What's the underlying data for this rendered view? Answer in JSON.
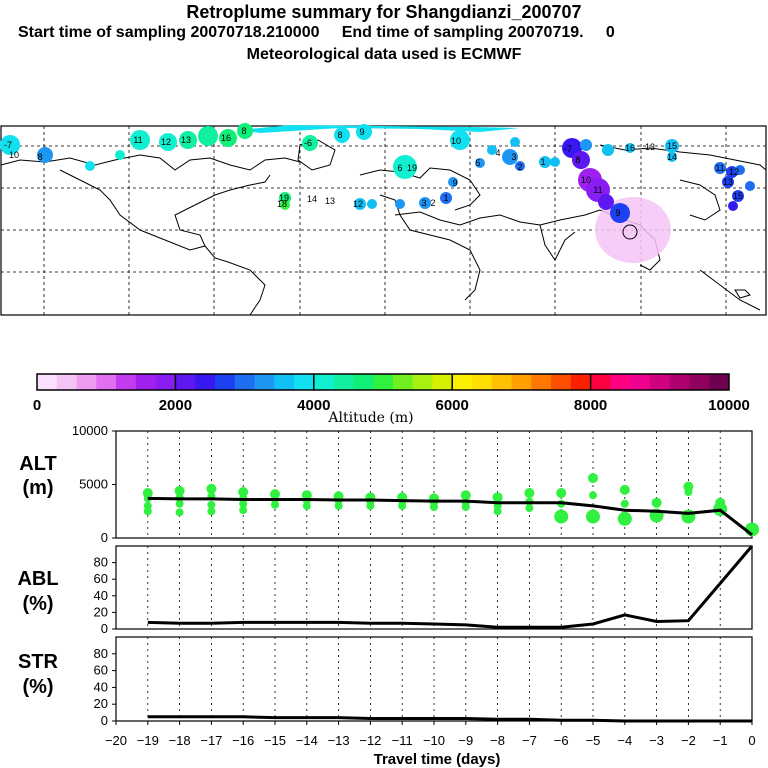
{
  "header": {
    "title": "Retroplume summary for Shangdianzi_200707",
    "subtitle": "Start time of sampling 20070718.210000     End time of sampling 20070719.     0",
    "met_note": "Meteorological data used is ECMWF"
  },
  "colorbar": {
    "label": "Altitude (m)",
    "ticks": [
      "0",
      "2000",
      "4000",
      "6000",
      "8000",
      "10000"
    ],
    "colors": [
      "#fbe0fb",
      "#f5c4f5",
      "#ee9cef",
      "#e070f0",
      "#c43cf0",
      "#a020f0",
      "#8a1ef2",
      "#5f18f2",
      "#3818f0",
      "#1e40f2",
      "#1e6ef2",
      "#1e96f2",
      "#10c0f4",
      "#10e0f0",
      "#10f0d0",
      "#10f0a0",
      "#10f078",
      "#30f040",
      "#70f020",
      "#a8f010",
      "#d8f000",
      "#f8f000",
      "#ffe000",
      "#ffc000",
      "#ffa000",
      "#ff7800",
      "#ff5000",
      "#ff2000",
      "#ff0040",
      "#ff0080",
      "#f00090",
      "#d00080",
      "#b00070",
      "#900060",
      "#700050"
    ]
  },
  "map": {
    "day_labels": [
      "-7",
      "8",
      "10",
      "11",
      "12",
      "13",
      "16",
      "8",
      "-6",
      "8",
      "9",
      "10",
      "6",
      "19",
      "19",
      "18",
      "14",
      "13",
      "12",
      "3",
      "2",
      "1",
      "9",
      "5",
      "4",
      "3",
      "2",
      "1",
      "-7",
      "8",
      "10",
      "11",
      "9",
      "16",
      "13",
      "15",
      "14",
      "11",
      "12",
      "13",
      "15"
    ]
  },
  "chart_data": [
    {
      "type": "scatter-line",
      "panel": "ALT",
      "ylabel": "ALT\n(m)",
      "ylim": [
        0,
        10000
      ],
      "yticks": [
        0,
        5000,
        10000
      ],
      "x": [
        -19,
        -18,
        -17,
        -16,
        -15,
        -14,
        -13,
        -12,
        -11,
        -10,
        -9,
        -8,
        -7,
        -6,
        -5,
        -4,
        -3,
        -2,
        -1,
        0
      ],
      "line": [
        3700,
        3650,
        3650,
        3600,
        3600,
        3600,
        3550,
        3550,
        3500,
        3450,
        3450,
        3300,
        3300,
        3300,
        3000,
        2600,
        2500,
        2300,
        2600,
        300
      ],
      "clusters": [
        [
          4200,
          3700,
          3000,
          2500
        ],
        [
          4400,
          3800,
          3200,
          2400
        ],
        [
          4600,
          3900,
          3100,
          2500
        ],
        [
          4300,
          3700,
          3200,
          2600
        ],
        [
          4100,
          3600,
          3100
        ],
        [
          4000,
          3500,
          3000
        ],
        [
          3900,
          3500,
          3000
        ],
        [
          3800,
          3400,
          3000
        ],
        [
          3800,
          3400,
          3000
        ],
        [
          3700,
          3300,
          2900
        ],
        [
          4000,
          3300,
          2900
        ],
        [
          3800,
          3000,
          2500
        ],
        [
          4200,
          3400,
          2800
        ],
        [
          4200,
          3200,
          2000
        ],
        [
          5600,
          4000,
          2000
        ],
        [
          4500,
          3200,
          1800
        ],
        [
          3300,
          2100
        ],
        [
          4800,
          4300,
          2000
        ],
        [
          3300,
          2700
        ],
        [
          800
        ]
      ]
    },
    {
      "type": "line",
      "panel": "ABL",
      "ylabel": "ABL\n(%)",
      "ylim": [
        0,
        100
      ],
      "yticks": [
        0,
        20,
        40,
        60,
        80
      ],
      "x": [
        -19,
        -18,
        -17,
        -16,
        -15,
        -14,
        -13,
        -12,
        -11,
        -10,
        -9,
        -8,
        -7,
        -6,
        -5,
        -4,
        -3,
        -2,
        -1,
        0
      ],
      "values": [
        8,
        7,
        7,
        8,
        8,
        8,
        8,
        7,
        7,
        6,
        5,
        2,
        2,
        2,
        6,
        17,
        9,
        10,
        55,
        100
      ]
    },
    {
      "type": "line",
      "panel": "STR",
      "ylabel": "STR\n(%)",
      "ylim": [
        0,
        100
      ],
      "yticks": [
        0,
        20,
        40,
        60,
        80
      ],
      "x": [
        -19,
        -18,
        -17,
        -16,
        -15,
        -14,
        -13,
        -12,
        -11,
        -10,
        -9,
        -8,
        -7,
        -6,
        -5,
        -4,
        -3,
        -2,
        -1,
        0
      ],
      "values": [
        5,
        5,
        5,
        5,
        4,
        4,
        4,
        3,
        3,
        3,
        3,
        2,
        2,
        1,
        1,
        0,
        0,
        0,
        0,
        0
      ]
    }
  ],
  "xaxis": {
    "label": "Travel time (days)",
    "ticks": [
      "−20",
      "−19",
      "−18",
      "−17",
      "−16",
      "−15",
      "−14",
      "−13",
      "−12",
      "−11",
      "−10",
      "−9",
      "−8",
      "−7",
      "−6",
      "−5",
      "−4",
      "−3",
      "−2",
      "−1",
      "0"
    ]
  }
}
